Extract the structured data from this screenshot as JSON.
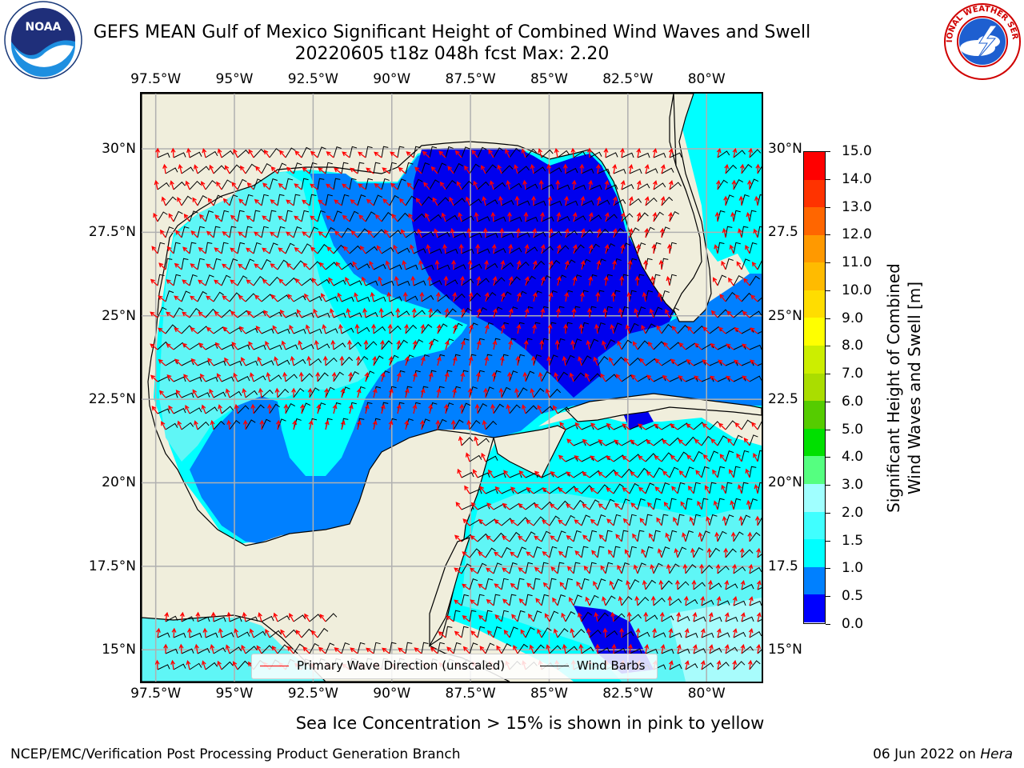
{
  "title": {
    "line1": "GEFS MEAN Gulf of Mexico Significant Height of Combined Wind Waves and Swell",
    "line2": "20220605 t18z 048h fcst   Max: 2.20"
  },
  "axes": {
    "lon_labels": [
      "97.5°W",
      "95°W",
      "92.5°W",
      "90°W",
      "87.5°W",
      "85°W",
      "82.5°W",
      "80°W"
    ],
    "lat_labels_left": [
      "30°N",
      "27.5°N",
      "25°N",
      "22.5°N",
      "20°N",
      "17.5°N",
      "15°N"
    ],
    "lat_labels_right": [
      "30°N",
      "27.5",
      "25°N",
      "22.5",
      "20°N",
      "17.5",
      "15°N"
    ],
    "lon_values": [
      -97.5,
      -95,
      -92.5,
      -90,
      -87.5,
      -85,
      -82.5,
      -80
    ],
    "lat_values": [
      30,
      27.5,
      25,
      22.5,
      20,
      17.5,
      15
    ],
    "lon_range": [
      -98,
      -78.2
    ],
    "lat_range": [
      14,
      31.7
    ],
    "grid": true
  },
  "legend": {
    "primary_wave": "Primary Wave Direction (unscaled)",
    "wind_barbs": "Wind Barbs",
    "primary_wave_color": "#ff0000",
    "wind_barbs_color": "#000000"
  },
  "colorbar": {
    "label_line1": "Significant Height of Combined",
    "label_line2": "Wind Waves and Swell [m]",
    "ticks": [
      "0.0",
      "0.5",
      "1.0",
      "1.5",
      "2.0",
      "3.0",
      "4.0",
      "5.0",
      "6.0",
      "7.0",
      "8.0",
      "9.0",
      "10.0",
      "11.0",
      "12.0",
      "13.0",
      "14.0",
      "15.0"
    ],
    "colors": [
      "#0000ff",
      "#0080ff",
      "#00ffff",
      "#40ffff",
      "#a0ffff",
      "#55ff80",
      "#00e000",
      "#55cc00",
      "#aadd00",
      "#ccee00",
      "#ffff00",
      "#ffdd00",
      "#ffbb00",
      "#ff9900",
      "#ff6600",
      "#ff3300",
      "#ff0000"
    ]
  },
  "map_colors": {
    "land": "#f0eedc",
    "h_0_05": "#0000ee",
    "h_05_10": "#0080ff",
    "h_10_15": "#00ffff",
    "h_15_20": "#5ff6f6",
    "h_20_30": "#a8fcfc"
  },
  "footer": {
    "note": "Sea Ice Concentration > 15% is shown in pink to yellow",
    "left": "NCEP/EMC/Verification Post Processing Product Generation Branch",
    "right_date": "06 Jun 2022 on ",
    "right_machine": "Hera"
  },
  "logos": {
    "noaa_text": "NOAA",
    "nws_text": "NATIONAL WEATHER SERVICE"
  }
}
